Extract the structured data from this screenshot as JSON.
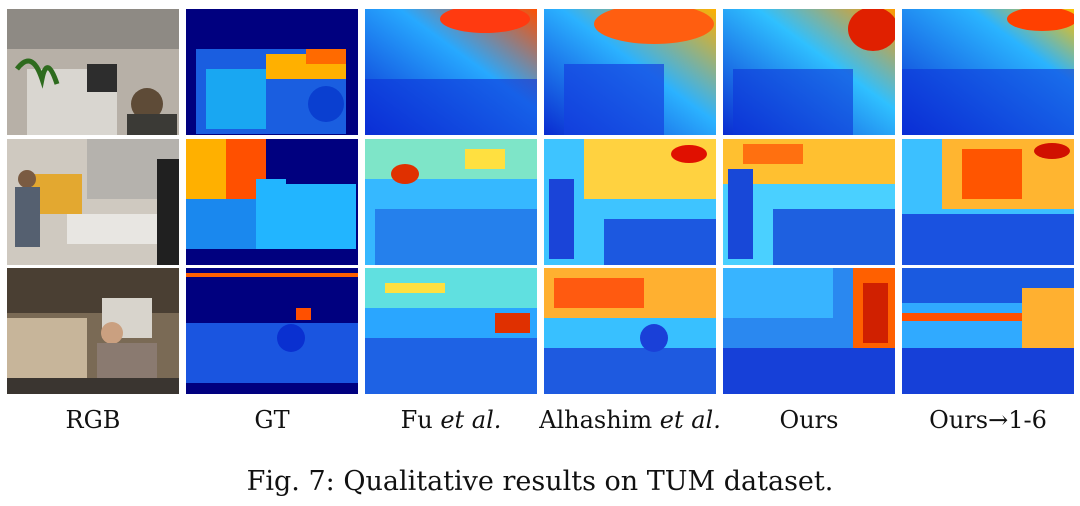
{
  "figure": {
    "columns": [
      {
        "label": "RGB",
        "label_italic": ""
      },
      {
        "label": "GT",
        "label_italic": ""
      },
      {
        "label": "Fu ",
        "label_italic": "et al."
      },
      {
        "label": "Alhashim ",
        "label_italic": "et al."
      },
      {
        "label": "Ours",
        "label_italic": ""
      },
      {
        "label": "Ours→1-6",
        "label_italic": ""
      }
    ],
    "caption": "Fig. 7: Qualitative results on TUM dataset.",
    "colors": {
      "depth_near": "#00008f",
      "depth_mid": "#00b4ff",
      "depth_far": "#e04000",
      "gt_invalid": "#00007f"
    }
  }
}
